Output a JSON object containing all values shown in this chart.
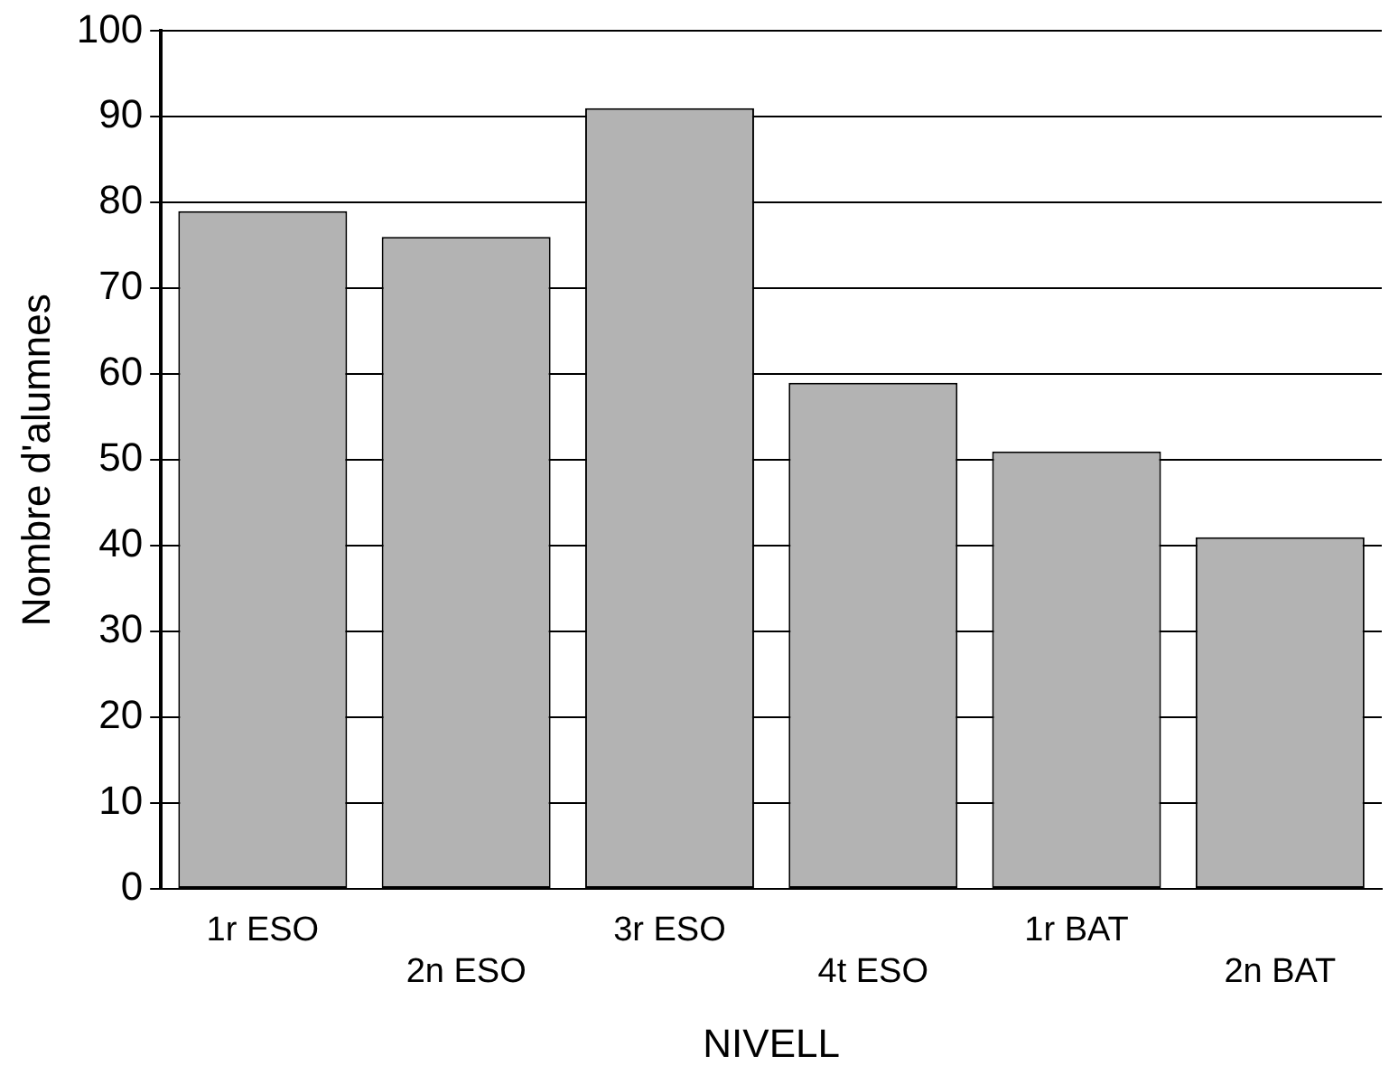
{
  "chart_data": {
    "type": "bar",
    "xlabel": "NIVELL",
    "ylabel": "Nombre d'alumnes",
    "categories": [
      "1r ESO",
      "2n ESO",
      "3r ESO",
      "4t ESO",
      "1r BAT",
      "2n BAT"
    ],
    "values": [
      79,
      76,
      91,
      59,
      51,
      41
    ],
    "color": "#b3b3b3",
    "ylim": [
      0,
      100
    ],
    "yticks": [
      0,
      10,
      20,
      30,
      40,
      50,
      60,
      70,
      80,
      90,
      100
    ],
    "grid": "y",
    "legend": false
  }
}
